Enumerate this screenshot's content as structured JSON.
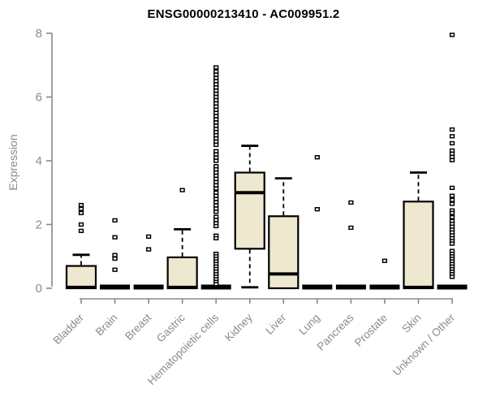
{
  "chart_data": {
    "type": "boxplot",
    "title": "ENSG00000213410 - AC009951.2",
    "ylabel": "Expression",
    "xlabel": "",
    "ylim": [
      0,
      8
    ],
    "yticks": [
      0,
      2,
      4,
      6,
      8
    ],
    "grid": false,
    "legend": "none",
    "colors": {
      "box_fill": "#EDE8CF",
      "box_stroke": "#000000",
      "axis_line": "#888888",
      "tick_text": "#8a8a8a",
      "title_text": "#000000",
      "outlier_fill": "#ffffff"
    },
    "categories": [
      "Bladder",
      "Brain",
      "Breast",
      "Gastric",
      "Hematopoietic cells",
      "Kidney",
      "Liver",
      "Lung",
      "Pancreas",
      "Prostate",
      "Skin",
      "Unknown / Other"
    ],
    "series": [
      {
        "category": "Bladder",
        "q1": 0,
        "median": 0.03,
        "q3": 0.7,
        "whisker_low": 0,
        "whisker_high": 1.05,
        "outliers": [
          1.8,
          2.0,
          2.36,
          2.49,
          2.61
        ]
      },
      {
        "category": "Brain",
        "q1": 0,
        "median": 0,
        "q3": 0,
        "whisker_low": 0,
        "whisker_high": 0,
        "outliers": [
          0.58,
          0.93,
          1.04,
          1.6,
          2.13
        ]
      },
      {
        "category": "Breast",
        "q1": 0,
        "median": 0,
        "q3": 0,
        "whisker_low": 0,
        "whisker_high": 0,
        "outliers": [
          1.22,
          1.62
        ]
      },
      {
        "category": "Gastric",
        "q1": 0,
        "median": 0.03,
        "q3": 0.97,
        "whisker_low": 0,
        "whisker_high": 1.85,
        "outliers": [
          3.08
        ]
      },
      {
        "category": "Hematopoietic cells",
        "q1": 0,
        "median": 0,
        "q3": 0,
        "whisker_low": 0,
        "whisker_high": 0,
        "outliers": [
          6.93,
          6.8,
          6.7,
          6.6,
          6.5,
          6.4,
          6.3,
          6.2,
          6.1,
          6.0,
          5.9,
          5.8,
          5.7,
          5.6,
          5.5,
          5.4,
          5.3,
          5.2,
          5.1,
          5.0,
          4.9,
          4.8,
          4.7,
          4.6,
          4.5,
          4.3,
          4.2,
          4.1,
          4.0,
          3.83,
          3.73,
          3.63,
          3.53,
          3.43,
          3.33,
          3.23,
          3.13,
          3.0,
          2.9,
          2.8,
          2.7,
          2.6,
          2.5,
          2.4,
          2.24,
          2.14,
          2.04,
          1.95,
          1.65,
          1.57,
          1.08,
          1.0,
          0.92,
          0.84,
          0.76,
          0.68,
          0.6,
          0.52,
          0.44,
          0.36,
          0.28,
          0.2,
          0.13
        ]
      },
      {
        "category": "Kidney",
        "q1": 1.24,
        "median": 3.0,
        "q3": 3.63,
        "whisker_low": 0.03,
        "whisker_high": 4.47,
        "outliers": []
      },
      {
        "category": "Liver",
        "q1": 0,
        "median": 0.45,
        "q3": 2.26,
        "whisker_low": 0,
        "whisker_high": 3.45,
        "outliers": []
      },
      {
        "category": "Lung",
        "q1": 0,
        "median": 0,
        "q3": 0,
        "whisker_low": 0,
        "whisker_high": 0,
        "outliers": [
          2.48,
          4.11
        ]
      },
      {
        "category": "Pancreas",
        "q1": 0,
        "median": 0,
        "q3": 0,
        "whisker_low": 0,
        "whisker_high": 0,
        "outliers": [
          1.9,
          2.69
        ]
      },
      {
        "category": "Prostate",
        "q1": 0,
        "median": 0,
        "q3": 0,
        "whisker_low": 0,
        "whisker_high": 0,
        "outliers": [
          0.86
        ]
      },
      {
        "category": "Skin",
        "q1": 0,
        "median": 0.03,
        "q3": 2.72,
        "whisker_low": 0,
        "whisker_high": 3.63,
        "outliers": []
      },
      {
        "category": "Unknown / Other",
        "q1": 0,
        "median": 0,
        "q3": 0,
        "whisker_low": 0,
        "whisker_high": 0,
        "outliers": [
          7.95,
          4.98,
          4.77,
          4.55,
          4.32,
          4.22,
          4.12,
          4.02,
          3.15,
          2.9,
          2.77,
          2.65,
          2.44,
          2.36,
          2.23,
          2.11,
          2.02,
          1.93,
          1.84,
          1.75,
          1.66,
          1.57,
          1.48,
          1.4,
          1.17,
          1.08,
          1.0,
          0.92,
          0.84,
          0.76,
          0.68,
          0.6,
          0.52,
          0.44,
          0.36
        ]
      }
    ]
  }
}
